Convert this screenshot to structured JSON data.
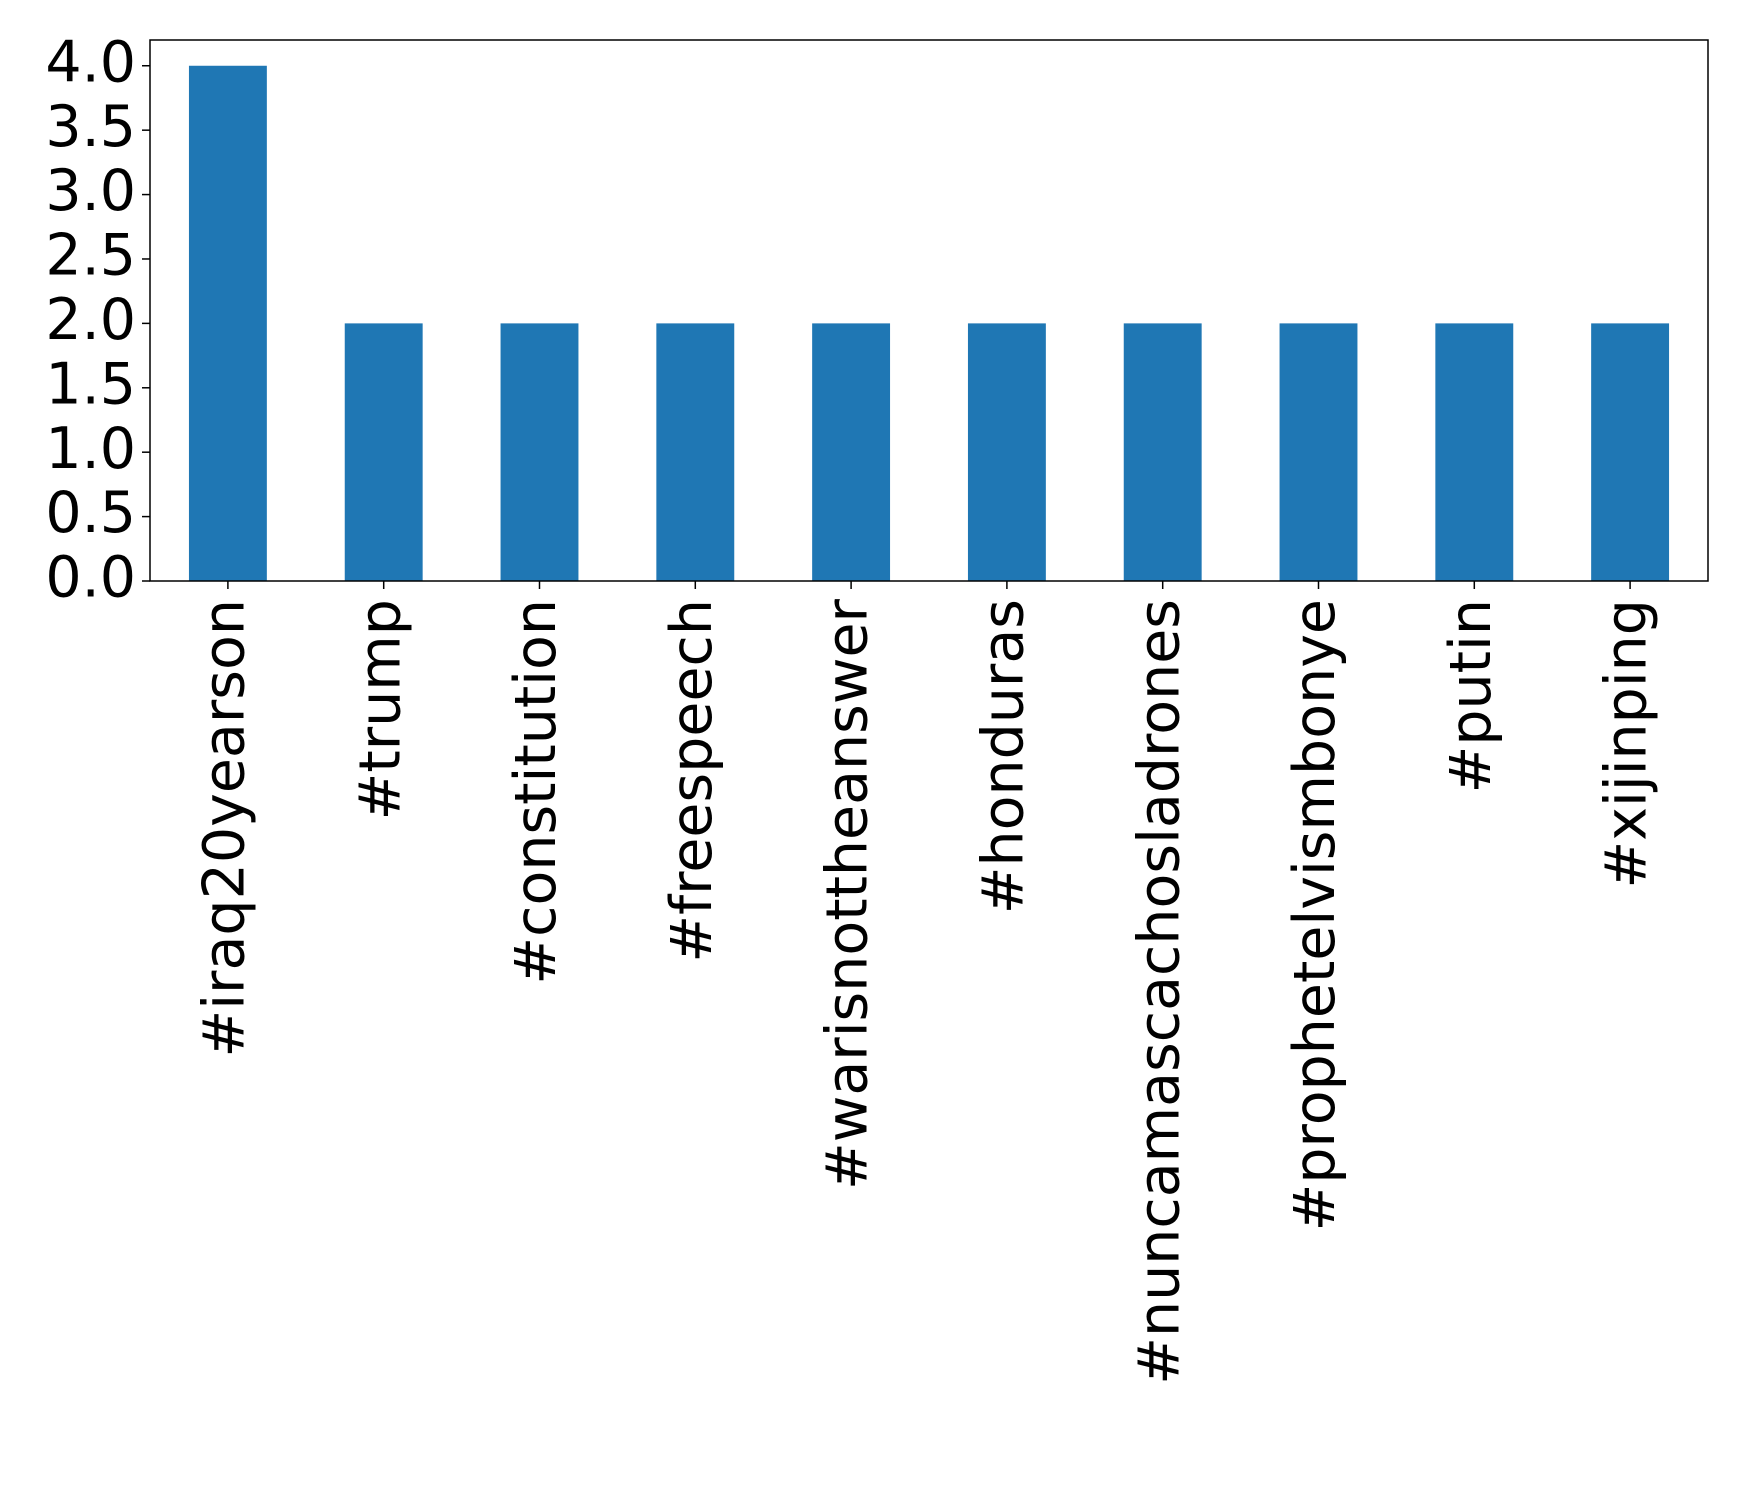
{
  "chart_data": {
    "type": "bar",
    "categories": [
      "#iraq20yearson",
      "#trump",
      "#constitution",
      "#freespeech",
      "#warisnottheanswer",
      "#honduras",
      "#nuncamascachosladrones",
      "#prophetelvismbonye",
      "#putin",
      "#xijinping"
    ],
    "values": [
      4,
      2,
      2,
      2,
      2,
      2,
      2,
      2,
      2,
      2
    ],
    "color": "#1f77b4",
    "ylim": [
      0,
      4.2
    ],
    "yticks": [
      {
        "value": 0,
        "label": "0.0"
      },
      0.5,
      {
        "value": 1,
        "label": "1.0"
      },
      1.5,
      {
        "value": 2,
        "label": "2.0"
      },
      2.5,
      {
        "value": 3,
        "label": "3.0"
      },
      3.5,
      {
        "value": 4,
        "label": "4.0"
      }
    ],
    "grid": false
  }
}
